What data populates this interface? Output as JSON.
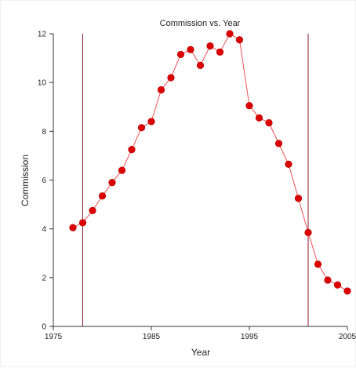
{
  "chart_data": {
    "type": "line",
    "title": "Commission vs. Year",
    "xlabel": "Year",
    "ylabel": "Commission",
    "xlim": [
      1975,
      2005
    ],
    "ylim": [
      0,
      12
    ],
    "x_ticks": [
      1975,
      1985,
      1995,
      2005
    ],
    "y_ticks": [
      0,
      2,
      4,
      6,
      8,
      10,
      12
    ],
    "grid": false,
    "legend": false,
    "series": [
      {
        "x": [
          1977,
          1978,
          1979,
          1980,
          1981,
          1982,
          1983,
          1984,
          1985,
          1986,
          1987,
          1988,
          1989,
          1990,
          1991,
          1992,
          1993,
          1994,
          1995,
          1996,
          1997,
          1998,
          1999,
          2000,
          2001,
          2002,
          2003,
          2004,
          2005
        ],
        "y": [
          4.05,
          4.25,
          4.75,
          5.35,
          5.9,
          6.4,
          7.25,
          8.15,
          8.4,
          9.7,
          10.2,
          11.15,
          11.35,
          10.7,
          11.5,
          11.25,
          12.0,
          11.75,
          9.05,
          8.55,
          8.35,
          7.5,
          6.65,
          5.25,
          3.85,
          2.55,
          1.9,
          1.7,
          1.45
        ]
      }
    ],
    "vertical_lines": [
      1978,
      2001
    ],
    "colors": {
      "line": "#f05050",
      "marker": "#dd0000",
      "vline": "#8b1a2a",
      "axis": "#333333"
    }
  }
}
